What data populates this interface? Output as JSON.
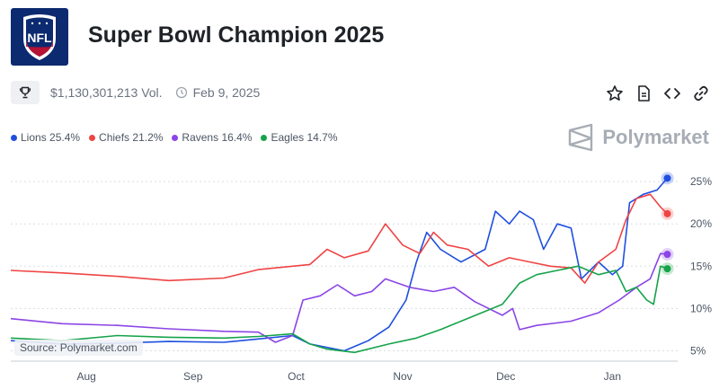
{
  "header": {
    "title": "Super Bowl Champion 2025",
    "logo_text": "NFL",
    "volume": "$1,130,301,213 Vol.",
    "date": "Feb 9, 2025"
  },
  "brand": "Polymarket",
  "source_label": "Source: Polymarket.com",
  "legend": [
    {
      "label": "Lions 25.4%",
      "color": "#1f4fe0"
    },
    {
      "label": "Chiefs 21.2%",
      "color": "#ef4444"
    },
    {
      "label": "Ravens 16.4%",
      "color": "#8b45e6"
    },
    {
      "label": "Eagles 14.7%",
      "color": "#16a34a"
    }
  ],
  "actions": [
    {
      "icon": "star-icon"
    },
    {
      "icon": "document-icon"
    },
    {
      "icon": "code-icon"
    },
    {
      "icon": "link-icon"
    }
  ],
  "chart_data": {
    "type": "line",
    "x_ticks": [
      "Aug",
      "Sep",
      "Oct",
      "Nov",
      "Dec",
      "Jan"
    ],
    "y_ticks": [
      "5%",
      "10%",
      "15%",
      "20%",
      "25%"
    ],
    "y_tick_values": [
      5,
      10,
      15,
      20,
      25
    ],
    "ylim": [
      4.2,
      26.5
    ],
    "x_tick_dates": [
      "2024-08-01",
      "2024-09-01",
      "2024-10-01",
      "2024-11-01",
      "2024-12-01",
      "2025-01-01"
    ],
    "xlim": [
      "2024-07-10",
      "2025-01-20"
    ],
    "grid": true,
    "series": [
      {
        "name": "Lions",
        "color": "#1f4fe0",
        "points": [
          [
            "2024-07-10",
            6.2
          ],
          [
            "2024-07-25",
            5.8
          ],
          [
            "2024-08-10",
            5.9
          ],
          [
            "2024-08-25",
            6.1
          ],
          [
            "2024-09-10",
            6.0
          ],
          [
            "2024-09-20",
            6.4
          ],
          [
            "2024-09-30",
            6.8
          ],
          [
            "2024-10-05",
            5.8
          ],
          [
            "2024-10-15",
            5.0
          ],
          [
            "2024-10-22",
            6.2
          ],
          [
            "2024-10-28",
            7.8
          ],
          [
            "2024-11-02",
            11.0
          ],
          [
            "2024-11-05",
            15.5
          ],
          [
            "2024-11-08",
            19.0
          ],
          [
            "2024-11-12",
            17.0
          ],
          [
            "2024-11-18",
            15.5
          ],
          [
            "2024-11-25",
            17.0
          ],
          [
            "2024-11-28",
            21.5
          ],
          [
            "2024-12-02",
            20.0
          ],
          [
            "2024-12-05",
            21.5
          ],
          [
            "2024-12-09",
            20.5
          ],
          [
            "2024-12-12",
            17.0
          ],
          [
            "2024-12-16",
            20.0
          ],
          [
            "2024-12-20",
            19.5
          ],
          [
            "2024-12-23",
            13.5
          ],
          [
            "2024-12-28",
            15.5
          ],
          [
            "2025-01-01",
            14.0
          ],
          [
            "2025-01-04",
            15.0
          ],
          [
            "2025-01-06",
            22.5
          ],
          [
            "2025-01-10",
            23.5
          ],
          [
            "2025-01-14",
            24.0
          ],
          [
            "2025-01-17",
            25.4
          ]
        ]
      },
      {
        "name": "Chiefs",
        "color": "#ef4444",
        "points": [
          [
            "2024-07-10",
            14.5
          ],
          [
            "2024-07-25",
            14.2
          ],
          [
            "2024-08-10",
            13.8
          ],
          [
            "2024-08-25",
            13.3
          ],
          [
            "2024-09-10",
            13.6
          ],
          [
            "2024-09-20",
            14.6
          ],
          [
            "2024-09-30",
            15.0
          ],
          [
            "2024-10-05",
            15.2
          ],
          [
            "2024-10-10",
            17.0
          ],
          [
            "2024-10-15",
            16.0
          ],
          [
            "2024-10-22",
            16.8
          ],
          [
            "2024-10-27",
            20.0
          ],
          [
            "2024-11-01",
            17.5
          ],
          [
            "2024-11-06",
            16.5
          ],
          [
            "2024-11-10",
            19.0
          ],
          [
            "2024-11-14",
            17.5
          ],
          [
            "2024-11-20",
            17.0
          ],
          [
            "2024-11-26",
            15.0
          ],
          [
            "2024-12-02",
            16.0
          ],
          [
            "2024-12-08",
            15.5
          ],
          [
            "2024-12-14",
            15.0
          ],
          [
            "2024-12-20",
            14.8
          ],
          [
            "2024-12-24",
            13.0
          ],
          [
            "2024-12-28",
            15.5
          ],
          [
            "2025-01-02",
            17.0
          ],
          [
            "2025-01-05",
            20.5
          ],
          [
            "2025-01-08",
            23.0
          ],
          [
            "2025-01-12",
            23.5
          ],
          [
            "2025-01-15",
            22.0
          ],
          [
            "2025-01-17",
            21.2
          ]
        ]
      },
      {
        "name": "Ravens",
        "color": "#8b45e6",
        "points": [
          [
            "2024-07-10",
            8.8
          ],
          [
            "2024-07-25",
            8.2
          ],
          [
            "2024-08-10",
            8.0
          ],
          [
            "2024-08-25",
            7.6
          ],
          [
            "2024-09-10",
            7.3
          ],
          [
            "2024-09-20",
            7.2
          ],
          [
            "2024-09-25",
            6.0
          ],
          [
            "2024-09-30",
            6.8
          ],
          [
            "2024-10-03",
            11.0
          ],
          [
            "2024-10-08",
            11.5
          ],
          [
            "2024-10-13",
            12.8
          ],
          [
            "2024-10-18",
            11.5
          ],
          [
            "2024-10-23",
            12.0
          ],
          [
            "2024-10-27",
            13.5
          ],
          [
            "2024-11-03",
            12.5
          ],
          [
            "2024-11-10",
            12.0
          ],
          [
            "2024-11-16",
            12.5
          ],
          [
            "2024-11-22",
            10.8
          ],
          [
            "2024-11-30",
            9.2
          ],
          [
            "2024-12-03",
            10.0
          ],
          [
            "2024-12-05",
            7.5
          ],
          [
            "2024-12-10",
            8.0
          ],
          [
            "2024-12-20",
            8.5
          ],
          [
            "2024-12-28",
            9.5
          ],
          [
            "2025-01-03",
            11.0
          ],
          [
            "2025-01-08",
            12.5
          ],
          [
            "2025-01-12",
            13.5
          ],
          [
            "2025-01-15",
            16.5
          ],
          [
            "2025-01-17",
            16.4
          ]
        ]
      },
      {
        "name": "Eagles",
        "color": "#16a34a",
        "points": [
          [
            "2024-07-10",
            6.5
          ],
          [
            "2024-07-25",
            6.2
          ],
          [
            "2024-08-10",
            6.8
          ],
          [
            "2024-08-25",
            6.6
          ],
          [
            "2024-09-10",
            6.5
          ],
          [
            "2024-09-20",
            6.7
          ],
          [
            "2024-09-30",
            7.0
          ],
          [
            "2024-10-05",
            5.8
          ],
          [
            "2024-10-10",
            5.2
          ],
          [
            "2024-10-18",
            4.8
          ],
          [
            "2024-10-28",
            5.8
          ],
          [
            "2024-11-05",
            6.5
          ],
          [
            "2024-11-12",
            7.5
          ],
          [
            "2024-11-18",
            8.5
          ],
          [
            "2024-11-24",
            9.5
          ],
          [
            "2024-11-30",
            10.5
          ],
          [
            "2024-12-05",
            13.0
          ],
          [
            "2024-12-10",
            14.0
          ],
          [
            "2024-12-16",
            14.5
          ],
          [
            "2024-12-22",
            15.0
          ],
          [
            "2024-12-28",
            14.0
          ],
          [
            "2025-01-02",
            14.5
          ],
          [
            "2025-01-05",
            12.0
          ],
          [
            "2025-01-08",
            12.5
          ],
          [
            "2025-01-11",
            11.0
          ],
          [
            "2025-01-13",
            10.5
          ],
          [
            "2025-01-15",
            15.0
          ],
          [
            "2025-01-17",
            14.7
          ]
        ]
      }
    ]
  }
}
